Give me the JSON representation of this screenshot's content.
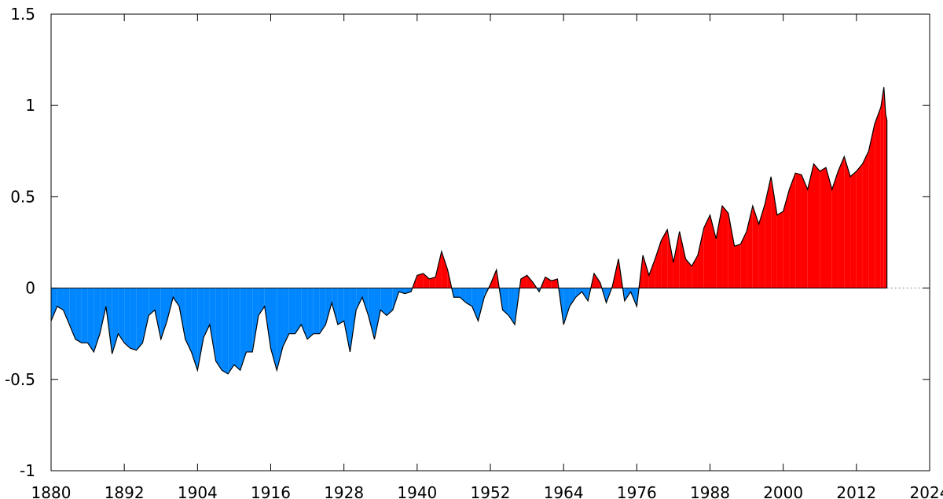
{
  "chart_data": {
    "type": "area",
    "title": "",
    "xlabel": "",
    "ylabel": "",
    "xlim": [
      1880,
      2024
    ],
    "ylim": [
      -1,
      1.5
    ],
    "grid": false,
    "legend": "none",
    "baseline": 0,
    "colors": {
      "positive": "#ff0000",
      "negative": "#0087ff",
      "line": "#000000",
      "axis": "#000000",
      "baseline_ext": "#888888"
    },
    "x_ticks": [
      {
        "value": 1880,
        "label": "1880"
      },
      {
        "value": 1892,
        "label": "1892"
      },
      {
        "value": 1904,
        "label": "1904"
      },
      {
        "value": 1916,
        "label": "1916"
      },
      {
        "value": 1928,
        "label": "1928"
      },
      {
        "value": 1940,
        "label": "1940"
      },
      {
        "value": 1952,
        "label": "1952"
      },
      {
        "value": 1964,
        "label": "1964"
      },
      {
        "value": 1976,
        "label": "1976"
      },
      {
        "value": 1988,
        "label": "1988"
      },
      {
        "value": 2000,
        "label": "2000"
      },
      {
        "value": 2012,
        "label": "2012"
      },
      {
        "value": 2024,
        "label": "2024"
      }
    ],
    "y_ticks": [
      {
        "value": 1.5,
        "label": "1.5"
      },
      {
        "value": 1,
        "label": "1"
      },
      {
        "value": 0.5,
        "label": "0.5"
      },
      {
        "value": 0,
        "label": "0"
      },
      {
        "value": -0.5,
        "label": "-0.5"
      },
      {
        "value": -1,
        "label": "-1"
      }
    ],
    "series": [
      {
        "x": [
          1880,
          1881,
          1882,
          1883,
          1884,
          1885,
          1886,
          1887,
          1888,
          1889,
          1890,
          1891,
          1892,
          1893,
          1894,
          1895,
          1896,
          1897,
          1898,
          1899,
          1900,
          1901,
          1902,
          1903,
          1904,
          1905,
          1906,
          1907,
          1908,
          1909,
          1910,
          1911,
          1912,
          1913,
          1914,
          1915,
          1916,
          1917,
          1918,
          1919,
          1920,
          1921,
          1922,
          1923,
          1924,
          1925,
          1926,
          1927,
          1928,
          1929,
          1930,
          1931,
          1932,
          1933,
          1934,
          1935,
          1936,
          1937,
          1938,
          1939,
          1940,
          1941,
          1942,
          1943,
          1944,
          1945,
          1946,
          1947,
          1948,
          1949,
          1950,
          1951,
          1952,
          1953,
          1954,
          1955,
          1956,
          1957,
          1958,
          1959,
          1960,
          1961,
          1962,
          1963,
          1964,
          1965,
          1966,
          1967,
          1968,
          1969,
          1970,
          1971,
          1972,
          1973,
          1974,
          1975,
          1976,
          1977,
          1978,
          1979,
          1980,
          1981,
          1982,
          1983,
          1984,
          1985,
          1986,
          1987,
          1988,
          1989,
          1990,
          1991,
          1992,
          1993,
          1994,
          1995,
          1996,
          1997,
          1998,
          1999,
          2000,
          2001,
          2002,
          2003,
          2004,
          2005,
          2006,
          2007,
          2008,
          2009,
          2010,
          2011,
          2012,
          2013,
          2014,
          2015,
          2016,
          2016.5,
          2016.8,
          2017
        ],
        "y": [
          -0.18,
          -0.1,
          -0.12,
          -0.2,
          -0.28,
          -0.3,
          -0.3,
          -0.35,
          -0.25,
          -0.1,
          -0.36,
          -0.25,
          -0.3,
          -0.33,
          -0.34,
          -0.3,
          -0.15,
          -0.12,
          -0.28,
          -0.18,
          -0.05,
          -0.1,
          -0.28,
          -0.35,
          -0.45,
          -0.27,
          -0.2,
          -0.4,
          -0.45,
          -0.47,
          -0.42,
          -0.45,
          -0.35,
          -0.35,
          -0.15,
          -0.1,
          -0.33,
          -0.45,
          -0.32,
          -0.25,
          -0.25,
          -0.2,
          -0.28,
          -0.25,
          -0.25,
          -0.2,
          -0.08,
          -0.2,
          -0.18,
          -0.35,
          -0.12,
          -0.05,
          -0.15,
          -0.28,
          -0.12,
          -0.15,
          -0.12,
          -0.02,
          -0.03,
          -0.02,
          0.07,
          0.08,
          0.05,
          0.06,
          0.2,
          0.1,
          -0.05,
          -0.05,
          -0.08,
          -0.1,
          -0.18,
          -0.05,
          0.02,
          0.1,
          -0.12,
          -0.15,
          -0.2,
          0.05,
          0.07,
          0.03,
          -0.02,
          0.06,
          0.04,
          0.05,
          -0.2,
          -0.1,
          -0.05,
          -0.02,
          -0.07,
          0.08,
          0.03,
          -0.08,
          0.01,
          0.16,
          -0.07,
          -0.02,
          -0.1,
          0.18,
          0.07,
          0.16,
          0.26,
          0.32,
          0.14,
          0.31,
          0.16,
          0.12,
          0.18,
          0.33,
          0.4,
          0.27,
          0.45,
          0.41,
          0.23,
          0.24,
          0.31,
          0.45,
          0.35,
          0.46,
          0.61,
          0.4,
          0.42,
          0.54,
          0.63,
          0.62,
          0.54,
          0.68,
          0.64,
          0.66,
          0.54,
          0.64,
          0.72,
          0.61,
          0.64,
          0.68,
          0.75,
          0.9,
          0.99,
          1.1,
          0.95,
          0.92
        ]
      }
    ]
  }
}
